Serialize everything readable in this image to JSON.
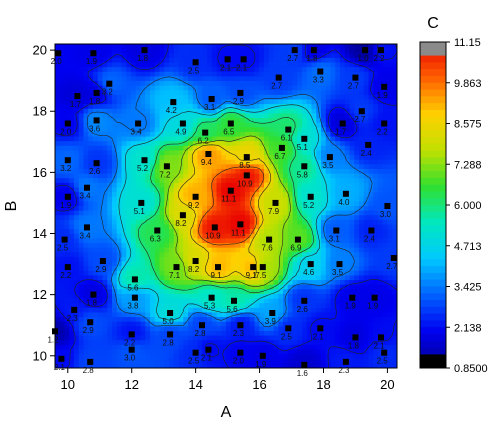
{
  "chart_data": {
    "type": "heatmap",
    "subtype": "contour",
    "xlabel": "A",
    "ylabel": "B",
    "colorbar_title": "C",
    "xlim": [
      9.6,
      20.3
    ],
    "ylim": [
      9.6,
      20.2
    ],
    "x_ticks": [
      "10",
      "12",
      "14",
      "16",
      "18",
      "20"
    ],
    "y_ticks": [
      "10",
      "12",
      "14",
      "16",
      "18",
      "20"
    ],
    "z_range": [
      0.85,
      11.15
    ],
    "colorbar_ticks": [
      "11.15",
      "9.863",
      "8.575",
      "7.288",
      "6.000",
      "4.713",
      "3.425",
      "2.138",
      "0.8500"
    ],
    "colorscale": [
      "#000090",
      "#0000f0",
      "#0060ff",
      "#00c8ff",
      "#00e8c0",
      "#30e030",
      "#c0e000",
      "#ffd000",
      "#ff6000",
      "#e80000"
    ],
    "grid": false,
    "points": [
      {
        "x": 9.7,
        "y": 19.9,
        "label": "2.0"
      },
      {
        "x": 10.8,
        "y": 19.9,
        "label": "1.9"
      },
      {
        "x": 12.4,
        "y": 20.0,
        "label": "1.8"
      },
      {
        "x": 14.0,
        "y": 19.6,
        "label": "2.5"
      },
      {
        "x": 15.0,
        "y": 19.7,
        "label": "2.1"
      },
      {
        "x": 15.5,
        "y": 19.7,
        "label": "2.1"
      },
      {
        "x": 17.1,
        "y": 20.0,
        "label": "2.7"
      },
      {
        "x": 17.7,
        "y": 20.0,
        "label": "1.8"
      },
      {
        "x": 19.3,
        "y": 20.0,
        "label": "1.0"
      },
      {
        "x": 19.8,
        "y": 20.0,
        "label": "2.2"
      },
      {
        "x": 11.3,
        "y": 18.9,
        "label": "3.2"
      },
      {
        "x": 10.3,
        "y": 18.5,
        "label": "1.7"
      },
      {
        "x": 10.9,
        "y": 18.6,
        "label": "1.8"
      },
      {
        "x": 13.3,
        "y": 18.3,
        "label": "4.2"
      },
      {
        "x": 14.5,
        "y": 18.4,
        "label": "3.1"
      },
      {
        "x": 15.4,
        "y": 18.6,
        "label": "2.9"
      },
      {
        "x": 16.6,
        "y": 19.1,
        "label": "2.7"
      },
      {
        "x": 17.9,
        "y": 19.3,
        "label": "3.3"
      },
      {
        "x": 19.0,
        "y": 19.1,
        "label": "2.7"
      },
      {
        "x": 19.9,
        "y": 18.8,
        "label": "1.9"
      },
      {
        "x": 10.0,
        "y": 17.6,
        "label": "2.0"
      },
      {
        "x": 10.9,
        "y": 17.7,
        "label": "3.6"
      },
      {
        "x": 12.2,
        "y": 17.6,
        "label": "3.4"
      },
      {
        "x": 13.6,
        "y": 17.6,
        "label": "4.9"
      },
      {
        "x": 14.3,
        "y": 17.3,
        "label": "6.2"
      },
      {
        "x": 15.1,
        "y": 17.6,
        "label": "6.5"
      },
      {
        "x": 16.9,
        "y": 17.4,
        "label": "6.1"
      },
      {
        "x": 17.4,
        "y": 17.1,
        "label": "5.1"
      },
      {
        "x": 18.6,
        "y": 17.6,
        "label": "1.7"
      },
      {
        "x": 19.2,
        "y": 18.0,
        "label": "2.7"
      },
      {
        "x": 19.9,
        "y": 17.6,
        "label": "2.2"
      },
      {
        "x": 14.4,
        "y": 16.6,
        "label": "9.4"
      },
      {
        "x": 15.6,
        "y": 16.5,
        "label": "8.5"
      },
      {
        "x": 16.7,
        "y": 16.8,
        "label": "6.7"
      },
      {
        "x": 18.2,
        "y": 16.5,
        "label": "3.5"
      },
      {
        "x": 19.4,
        "y": 16.9,
        "label": "2.4"
      },
      {
        "x": 10.0,
        "y": 16.4,
        "label": "3.2"
      },
      {
        "x": 10.9,
        "y": 16.3,
        "label": "2.6"
      },
      {
        "x": 12.4,
        "y": 16.4,
        "label": "5.2"
      },
      {
        "x": 13.1,
        "y": 16.2,
        "label": "7.2"
      },
      {
        "x": 17.4,
        "y": 16.2,
        "label": "5.8"
      },
      {
        "x": 10.6,
        "y": 15.5,
        "label": "3.4"
      },
      {
        "x": 15.6,
        "y": 15.9,
        "label": "10.9"
      },
      {
        "x": 14.0,
        "y": 15.2,
        "label": "9.2"
      },
      {
        "x": 15.1,
        "y": 15.4,
        "label": "11.1"
      },
      {
        "x": 16.5,
        "y": 15.0,
        "label": "7.9"
      },
      {
        "x": 17.6,
        "y": 15.2,
        "label": "5.2"
      },
      {
        "x": 18.7,
        "y": 15.3,
        "label": "4.0"
      },
      {
        "x": 10.0,
        "y": 15.2,
        "label": "1.9"
      },
      {
        "x": 12.3,
        "y": 15.0,
        "label": "5.1"
      },
      {
        "x": 13.6,
        "y": 14.6,
        "label": "8.2"
      },
      {
        "x": 20.0,
        "y": 14.9,
        "label": "3.0"
      },
      {
        "x": 14.6,
        "y": 14.2,
        "label": "10.9"
      },
      {
        "x": 15.4,
        "y": 14.3,
        "label": "11.1"
      },
      {
        "x": 10.6,
        "y": 14.2,
        "label": "3.4"
      },
      {
        "x": 12.8,
        "y": 14.1,
        "label": "6.3"
      },
      {
        "x": 16.3,
        "y": 13.8,
        "label": "7.6"
      },
      {
        "x": 17.2,
        "y": 13.8,
        "label": "6.9"
      },
      {
        "x": 18.4,
        "y": 14.1,
        "label": "3.1"
      },
      {
        "x": 9.9,
        "y": 13.8,
        "label": "2.5"
      },
      {
        "x": 19.5,
        "y": 14.1,
        "label": "2.4"
      },
      {
        "x": 11.1,
        "y": 13.1,
        "label": "2.9"
      },
      {
        "x": 13.4,
        "y": 12.9,
        "label": "7.1"
      },
      {
        "x": 14.0,
        "y": 13.1,
        "label": "8.2"
      },
      {
        "x": 14.7,
        "y": 12.9,
        "label": "9.1"
      },
      {
        "x": 15.8,
        "y": 12.9,
        "label": "9.1"
      },
      {
        "x": 16.1,
        "y": 12.9,
        "label": "7.5"
      },
      {
        "x": 17.6,
        "y": 13.0,
        "label": "4.6"
      },
      {
        "x": 18.5,
        "y": 13.0,
        "label": "3.5"
      },
      {
        "x": 10.0,
        "y": 12.9,
        "label": "2.2"
      },
      {
        "x": 20.2,
        "y": 13.2,
        "label": "2.7"
      },
      {
        "x": 12.1,
        "y": 12.5,
        "label": "5.6"
      },
      {
        "x": 10.8,
        "y": 12.0,
        "label": "1.8"
      },
      {
        "x": 12.1,
        "y": 11.9,
        "label": "3.8"
      },
      {
        "x": 14.5,
        "y": 11.9,
        "label": "5.3"
      },
      {
        "x": 15.2,
        "y": 11.8,
        "label": "5.6"
      },
      {
        "x": 16.4,
        "y": 11.4,
        "label": "3.9"
      },
      {
        "x": 17.4,
        "y": 11.8,
        "label": "2.6"
      },
      {
        "x": 18.9,
        "y": 11.9,
        "label": "1.9"
      },
      {
        "x": 19.6,
        "y": 11.9,
        "label": "1.9"
      },
      {
        "x": 10.2,
        "y": 11.5,
        "label": "2.3"
      },
      {
        "x": 13.2,
        "y": 11.4,
        "label": "5.0"
      },
      {
        "x": 10.7,
        "y": 11.1,
        "label": "2.9"
      },
      {
        "x": 14.2,
        "y": 11.0,
        "label": "2.8"
      },
      {
        "x": 15.4,
        "y": 11.0,
        "label": "2.3"
      },
      {
        "x": 16.9,
        "y": 10.9,
        "label": "2.5"
      },
      {
        "x": 17.9,
        "y": 10.9,
        "label": "2.1"
      },
      {
        "x": 19.0,
        "y": 10.6,
        "label": "1.8"
      },
      {
        "x": 19.8,
        "y": 10.6,
        "label": "2.1"
      },
      {
        "x": 9.6,
        "y": 10.8,
        "label": "1.2"
      },
      {
        "x": 12.0,
        "y": 10.7,
        "label": "2.2"
      },
      {
        "x": 13.2,
        "y": 10.7,
        "label": "2.8"
      },
      {
        "x": 12.0,
        "y": 10.2,
        "label": "3.0"
      },
      {
        "x": 14.0,
        "y": 10.1,
        "label": "2.5"
      },
      {
        "x": 14.4,
        "y": 10.2,
        "label": "2.1"
      },
      {
        "x": 15.4,
        "y": 10.1,
        "label": "2.0"
      },
      {
        "x": 16.1,
        "y": 10.0,
        "label": "1.9"
      },
      {
        "x": 19.9,
        "y": 10.1,
        "label": "2.5"
      },
      {
        "x": 9.8,
        "y": 9.9,
        "label": "2.1"
      },
      {
        "x": 10.7,
        "y": 9.8,
        "label": "2.8"
      },
      {
        "x": 17.4,
        "y": 9.7,
        "label": "1.6"
      },
      {
        "x": 18.7,
        "y": 9.8,
        "label": "2.3"
      }
    ]
  }
}
